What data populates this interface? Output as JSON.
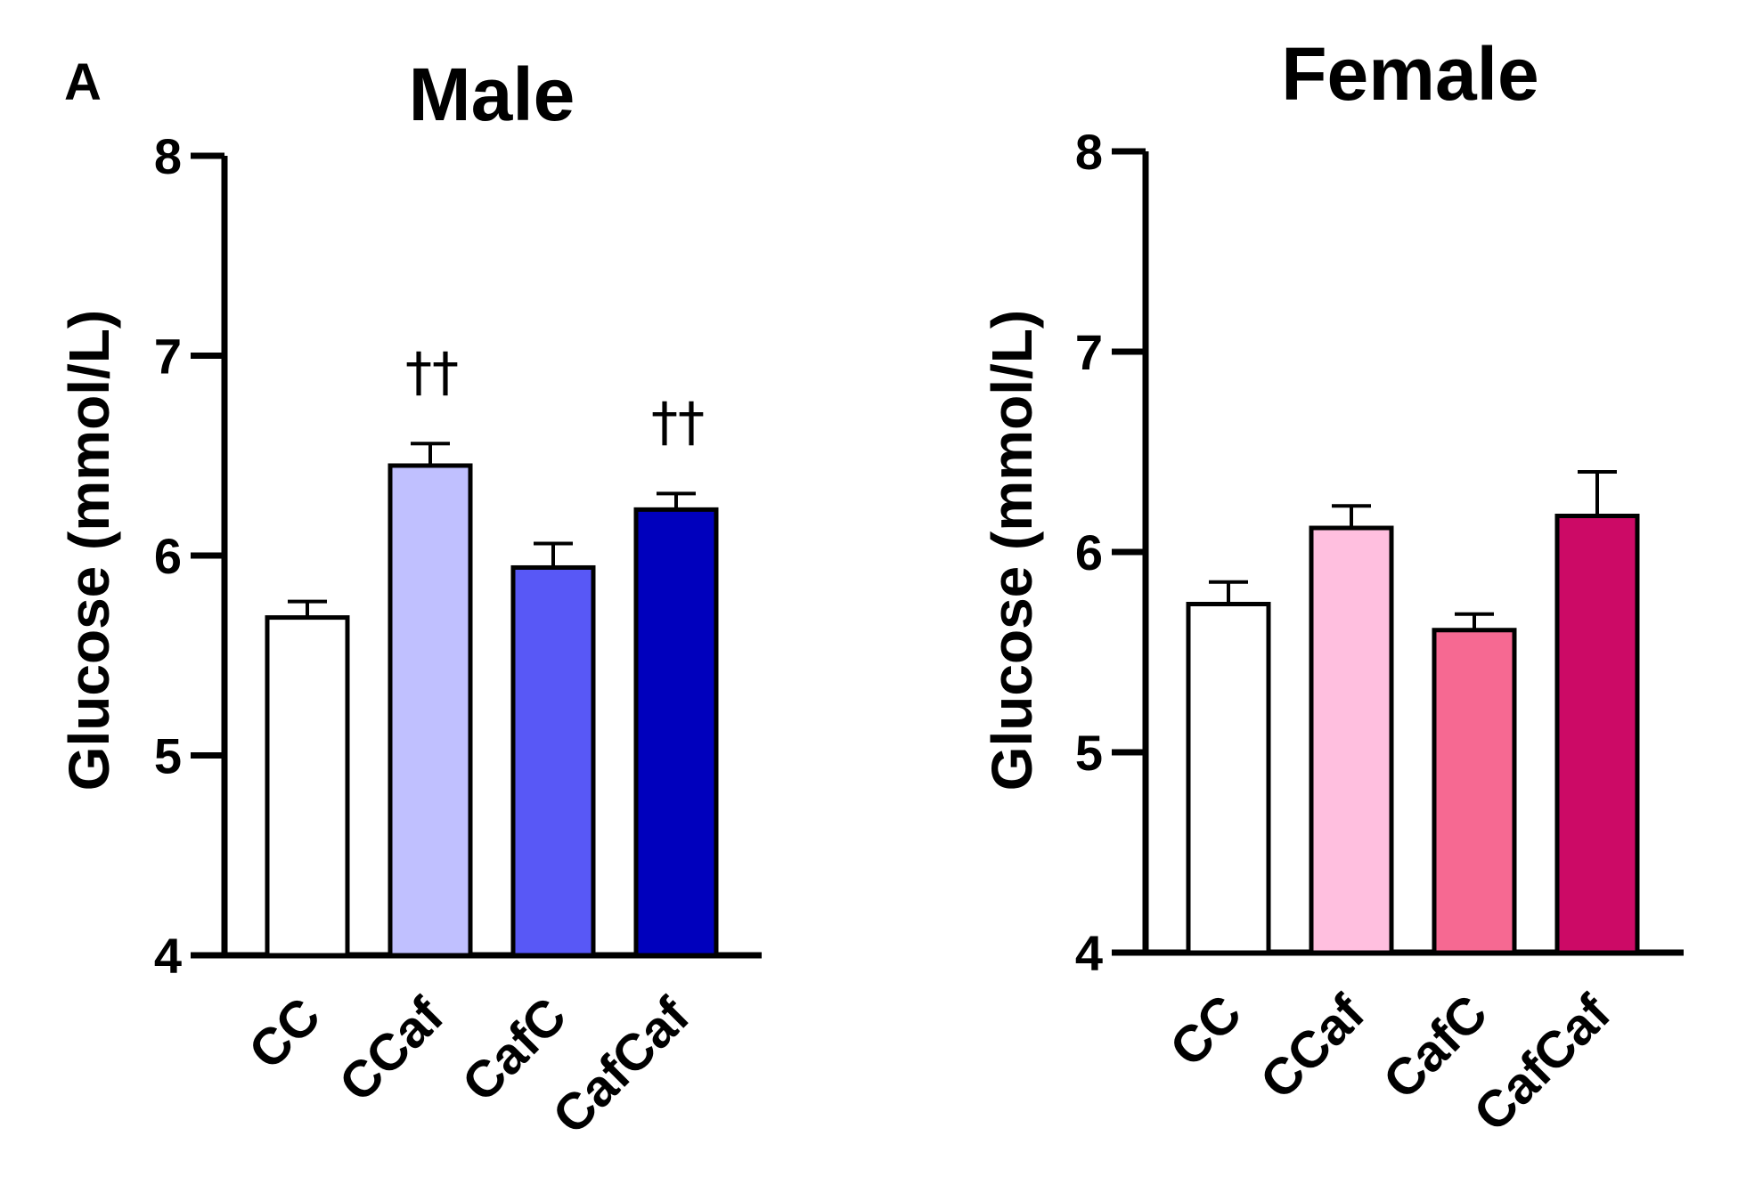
{
  "panel_letter": "A",
  "colors": {
    "male": [
      "#ffffff",
      "#c0c0ff",
      "#5858f6",
      "#0000bd"
    ],
    "female": [
      "#ffffff",
      "#ffbfdf",
      "#f66992",
      "#cc0a66"
    ]
  },
  "chart_data": [
    {
      "type": "bar",
      "title": "Male",
      "ylabel": "Glucose (mmol/L)",
      "xlabel": "",
      "ylim": [
        4,
        8
      ],
      "yticks": [
        "4",
        "5",
        "6",
        "7",
        "8"
      ],
      "categories": [
        "CC",
        "CCaf",
        "CafC",
        "CafCaf"
      ],
      "values": [
        5.69,
        6.45,
        5.94,
        6.23
      ],
      "errors": [
        0.08,
        0.11,
        0.12,
        0.08
      ],
      "annotations": [
        "",
        "††",
        "",
        "††"
      ],
      "grid": false
    },
    {
      "type": "bar",
      "title": "Female",
      "ylabel": "Glucose (mmol/L)",
      "xlabel": "",
      "ylim": [
        4,
        8
      ],
      "yticks": [
        "4",
        "5",
        "6",
        "7",
        "8"
      ],
      "categories": [
        "CC",
        "CCaf",
        "CafC",
        "CafCaf"
      ],
      "values": [
        5.74,
        6.12,
        5.61,
        6.18
      ],
      "errors": [
        0.11,
        0.11,
        0.08,
        0.22
      ],
      "annotations": [
        "",
        "",
        "",
        ""
      ],
      "grid": false
    }
  ]
}
